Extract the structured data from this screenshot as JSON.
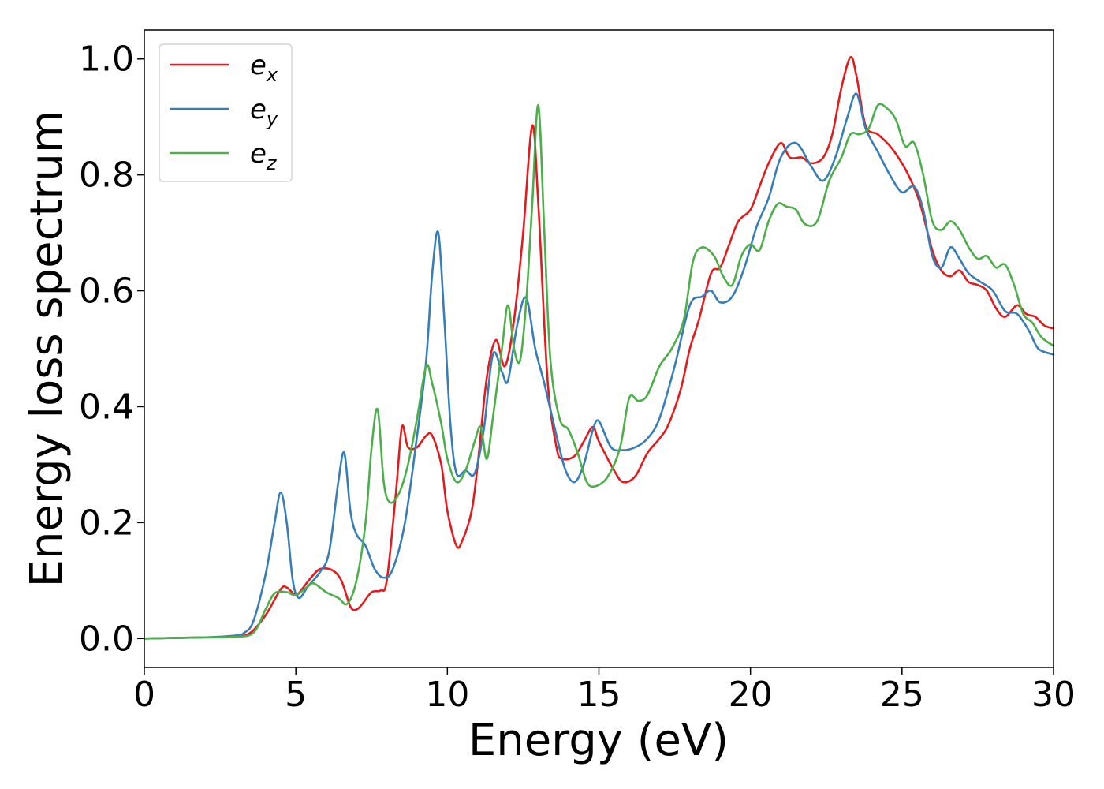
{
  "chart_data": {
    "type": "line",
    "title": "",
    "xlabel": "Energy (eV)",
    "ylabel": "Energy loss spectrum",
    "xlim": [
      0,
      30
    ],
    "ylim": [
      -0.05,
      1.05
    ],
    "xticks": [
      0,
      5,
      10,
      15,
      20,
      25,
      30
    ],
    "xtick_labels": [
      "0",
      "5",
      "10",
      "15",
      "20",
      "25",
      "30"
    ],
    "yticks": [
      0.0,
      0.2,
      0.4,
      0.6,
      0.8,
      1.0
    ],
    "ytick_labels": [
      "0.0",
      "0.2",
      "0.4",
      "0.6",
      "0.8",
      "1.0"
    ],
    "grid": false,
    "legend_position": "top-left",
    "series": [
      {
        "name": "e",
        "subscript": "x",
        "color": "#e41a1c",
        "points": [
          [
            0,
            0
          ],
          [
            2,
            0.002
          ],
          [
            3,
            0.003
          ],
          [
            3.5,
            0.01
          ],
          [
            4,
            0.04
          ],
          [
            4.5,
            0.085
          ],
          [
            4.7,
            0.088
          ],
          [
            5,
            0.075
          ],
          [
            5.2,
            0.085
          ],
          [
            5.5,
            0.105
          ],
          [
            5.8,
            0.12
          ],
          [
            6.2,
            0.118
          ],
          [
            6.5,
            0.1
          ],
          [
            6.8,
            0.055
          ],
          [
            7,
            0.05
          ],
          [
            7.2,
            0.06
          ],
          [
            7.5,
            0.08
          ],
          [
            7.8,
            0.083
          ],
          [
            8,
            0.1
          ],
          [
            8.3,
            0.25
          ],
          [
            8.5,
            0.365
          ],
          [
            8.7,
            0.33
          ],
          [
            9,
            0.33
          ],
          [
            9.3,
            0.35
          ],
          [
            9.5,
            0.35
          ],
          [
            9.8,
            0.3
          ],
          [
            10,
            0.22
          ],
          [
            10.3,
            0.16
          ],
          [
            10.5,
            0.17
          ],
          [
            10.8,
            0.22
          ],
          [
            11,
            0.3
          ],
          [
            11.3,
            0.45
          ],
          [
            11.6,
            0.515
          ],
          [
            11.9,
            0.47
          ],
          [
            12.2,
            0.55
          ],
          [
            12.5,
            0.7
          ],
          [
            12.8,
            0.885
          ],
          [
            13,
            0.75
          ],
          [
            13.3,
            0.45
          ],
          [
            13.6,
            0.33
          ],
          [
            13.8,
            0.31
          ],
          [
            14.2,
            0.315
          ],
          [
            14.5,
            0.34
          ],
          [
            14.8,
            0.365
          ],
          [
            15,
            0.34
          ],
          [
            15.5,
            0.29
          ],
          [
            15.8,
            0.27
          ],
          [
            16.2,
            0.28
          ],
          [
            16.6,
            0.32
          ],
          [
            17,
            0.345
          ],
          [
            17.3,
            0.37
          ],
          [
            17.7,
            0.43
          ],
          [
            18,
            0.5
          ],
          [
            18.3,
            0.55
          ],
          [
            18.7,
            0.63
          ],
          [
            19,
            0.64
          ],
          [
            19.3,
            0.68
          ],
          [
            19.6,
            0.72
          ],
          [
            20,
            0.74
          ],
          [
            20.3,
            0.78
          ],
          [
            20.6,
            0.82
          ],
          [
            21,
            0.855
          ],
          [
            21.3,
            0.83
          ],
          [
            21.7,
            0.83
          ],
          [
            22,
            0.82
          ],
          [
            22.4,
            0.83
          ],
          [
            22.7,
            0.87
          ],
          [
            23,
            0.95
          ],
          [
            23.3,
            1.003
          ],
          [
            23.5,
            0.97
          ],
          [
            23.8,
            0.885
          ],
          [
            24.2,
            0.87
          ],
          [
            24.6,
            0.85
          ],
          [
            25,
            0.82
          ],
          [
            25.3,
            0.79
          ],
          [
            25.6,
            0.75
          ],
          [
            26,
            0.67
          ],
          [
            26.3,
            0.635
          ],
          [
            26.6,
            0.625
          ],
          [
            26.9,
            0.635
          ],
          [
            27.2,
            0.615
          ],
          [
            27.5,
            0.61
          ],
          [
            27.8,
            0.6
          ],
          [
            28.1,
            0.57
          ],
          [
            28.4,
            0.555
          ],
          [
            28.8,
            0.575
          ],
          [
            29.1,
            0.56
          ],
          [
            29.4,
            0.555
          ],
          [
            29.7,
            0.54
          ],
          [
            30,
            0.535
          ]
        ]
      },
      {
        "name": "e",
        "subscript": "y",
        "color": "#377eb8",
        "points": [
          [
            0,
            0
          ],
          [
            2,
            0.002
          ],
          [
            3,
            0.005
          ],
          [
            3.3,
            0.01
          ],
          [
            3.6,
            0.03
          ],
          [
            4,
            0.11
          ],
          [
            4.3,
            0.2
          ],
          [
            4.5,
            0.252
          ],
          [
            4.7,
            0.2
          ],
          [
            4.9,
            0.1
          ],
          [
            5.1,
            0.07
          ],
          [
            5.4,
            0.09
          ],
          [
            5.8,
            0.115
          ],
          [
            6.1,
            0.15
          ],
          [
            6.4,
            0.27
          ],
          [
            6.6,
            0.32
          ],
          [
            6.8,
            0.22
          ],
          [
            7,
            0.18
          ],
          [
            7.3,
            0.16
          ],
          [
            7.6,
            0.12
          ],
          [
            7.9,
            0.105
          ],
          [
            8.2,
            0.12
          ],
          [
            8.6,
            0.2
          ],
          [
            9,
            0.35
          ],
          [
            9.3,
            0.48
          ],
          [
            9.5,
            0.63
          ],
          [
            9.7,
            0.7
          ],
          [
            9.9,
            0.55
          ],
          [
            10.1,
            0.37
          ],
          [
            10.3,
            0.285
          ],
          [
            10.6,
            0.29
          ],
          [
            10.9,
            0.285
          ],
          [
            11.2,
            0.36
          ],
          [
            11.5,
            0.49
          ],
          [
            11.8,
            0.46
          ],
          [
            12,
            0.445
          ],
          [
            12.3,
            0.54
          ],
          [
            12.6,
            0.588
          ],
          [
            12.9,
            0.5
          ],
          [
            13.2,
            0.44
          ],
          [
            13.6,
            0.35
          ],
          [
            13.9,
            0.29
          ],
          [
            14.2,
            0.27
          ],
          [
            14.5,
            0.3
          ],
          [
            14.8,
            0.36
          ],
          [
            15,
            0.375
          ],
          [
            15.4,
            0.33
          ],
          [
            15.8,
            0.325
          ],
          [
            16.2,
            0.33
          ],
          [
            16.6,
            0.345
          ],
          [
            17,
            0.38
          ],
          [
            17.5,
            0.47
          ],
          [
            18,
            0.575
          ],
          [
            18.4,
            0.59
          ],
          [
            18.7,
            0.6
          ],
          [
            19,
            0.58
          ],
          [
            19.4,
            0.59
          ],
          [
            19.8,
            0.64
          ],
          [
            20.2,
            0.71
          ],
          [
            20.6,
            0.76
          ],
          [
            21,
            0.83
          ],
          [
            21.5,
            0.855
          ],
          [
            22,
            0.815
          ],
          [
            22.4,
            0.79
          ],
          [
            22.8,
            0.83
          ],
          [
            23.2,
            0.9
          ],
          [
            23.5,
            0.94
          ],
          [
            23.8,
            0.88
          ],
          [
            24.2,
            0.84
          ],
          [
            24.6,
            0.8
          ],
          [
            25,
            0.77
          ],
          [
            25.4,
            0.78
          ],
          [
            25.7,
            0.74
          ],
          [
            26,
            0.66
          ],
          [
            26.3,
            0.64
          ],
          [
            26.6,
            0.675
          ],
          [
            26.9,
            0.655
          ],
          [
            27.2,
            0.63
          ],
          [
            27.6,
            0.615
          ],
          [
            28,
            0.6
          ],
          [
            28.4,
            0.565
          ],
          [
            28.8,
            0.56
          ],
          [
            29.2,
            0.53
          ],
          [
            29.5,
            0.5
          ],
          [
            30,
            0.49
          ]
        ]
      },
      {
        "name": "e",
        "subscript": "z",
        "color": "#4daf4a",
        "points": [
          [
            0,
            0
          ],
          [
            2,
            0.002
          ],
          [
            3,
            0.003
          ],
          [
            3.6,
            0.01
          ],
          [
            4,
            0.05
          ],
          [
            4.3,
            0.078
          ],
          [
            4.7,
            0.08
          ],
          [
            5,
            0.075
          ],
          [
            5.4,
            0.09
          ],
          [
            5.6,
            0.095
          ],
          [
            6,
            0.08
          ],
          [
            6.4,
            0.07
          ],
          [
            6.7,
            0.06
          ],
          [
            7,
            0.1
          ],
          [
            7.3,
            0.2
          ],
          [
            7.5,
            0.33
          ],
          [
            7.7,
            0.395
          ],
          [
            7.9,
            0.27
          ],
          [
            8.1,
            0.235
          ],
          [
            8.4,
            0.25
          ],
          [
            8.7,
            0.3
          ],
          [
            9,
            0.38
          ],
          [
            9.3,
            0.47
          ],
          [
            9.5,
            0.44
          ],
          [
            9.8,
            0.37
          ],
          [
            10,
            0.31
          ],
          [
            10.3,
            0.27
          ],
          [
            10.6,
            0.29
          ],
          [
            10.9,
            0.34
          ],
          [
            11.1,
            0.365
          ],
          [
            11.3,
            0.31
          ],
          [
            11.5,
            0.38
          ],
          [
            11.8,
            0.5
          ],
          [
            12,
            0.575
          ],
          [
            12.2,
            0.5
          ],
          [
            12.4,
            0.48
          ],
          [
            12.6,
            0.58
          ],
          [
            12.8,
            0.75
          ],
          [
            13,
            0.92
          ],
          [
            13.2,
            0.7
          ],
          [
            13.4,
            0.48
          ],
          [
            13.7,
            0.38
          ],
          [
            14,
            0.36
          ],
          [
            14.3,
            0.32
          ],
          [
            14.6,
            0.27
          ],
          [
            14.9,
            0.263
          ],
          [
            15.3,
            0.28
          ],
          [
            15.7,
            0.33
          ],
          [
            16,
            0.415
          ],
          [
            16.3,
            0.41
          ],
          [
            16.6,
            0.42
          ],
          [
            17,
            0.47
          ],
          [
            17.4,
            0.5
          ],
          [
            17.8,
            0.55
          ],
          [
            18.1,
            0.65
          ],
          [
            18.4,
            0.675
          ],
          [
            18.8,
            0.66
          ],
          [
            19.1,
            0.625
          ],
          [
            19.4,
            0.61
          ],
          [
            19.7,
            0.66
          ],
          [
            20,
            0.68
          ],
          [
            20.3,
            0.67
          ],
          [
            20.6,
            0.72
          ],
          [
            20.9,
            0.75
          ],
          [
            21.2,
            0.745
          ],
          [
            21.5,
            0.74
          ],
          [
            21.8,
            0.715
          ],
          [
            22.2,
            0.72
          ],
          [
            22.6,
            0.79
          ],
          [
            23,
            0.83
          ],
          [
            23.3,
            0.87
          ],
          [
            23.6,
            0.87
          ],
          [
            23.9,
            0.88
          ],
          [
            24.2,
            0.92
          ],
          [
            24.5,
            0.915
          ],
          [
            24.8,
            0.895
          ],
          [
            25.1,
            0.85
          ],
          [
            25.4,
            0.855
          ],
          [
            25.7,
            0.8
          ],
          [
            26,
            0.72
          ],
          [
            26.3,
            0.705
          ],
          [
            26.6,
            0.72
          ],
          [
            26.9,
            0.705
          ],
          [
            27.2,
            0.675
          ],
          [
            27.5,
            0.655
          ],
          [
            27.8,
            0.66
          ],
          [
            28.1,
            0.64
          ],
          [
            28.4,
            0.645
          ],
          [
            28.7,
            0.61
          ],
          [
            29,
            0.56
          ],
          [
            29.3,
            0.545
          ],
          [
            29.6,
            0.52
          ],
          [
            30,
            0.505
          ]
        ]
      }
    ]
  }
}
